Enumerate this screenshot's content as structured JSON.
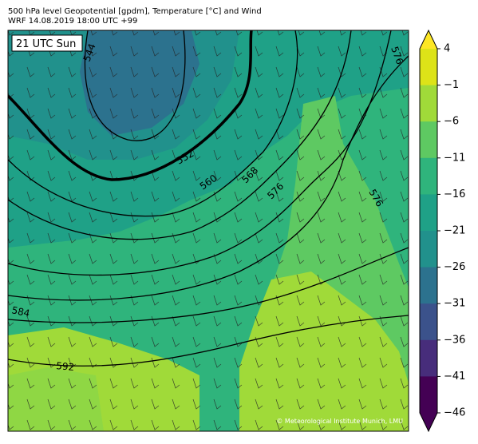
{
  "header": {
    "line1": "500 hPa level Geopotential [gpdm], Temperature [°C] and Wind",
    "line2": "WRF 14.08.2019 18:00 UTC +99"
  },
  "map": {
    "time_label": "21 UTC Sun",
    "contour_labels": [
      "544",
      "552",
      "560",
      "568",
      "576",
      "576",
      "576",
      "584",
      "592"
    ],
    "credit": "© Meteorological Institute Munich, LMU"
  },
  "colorbar": {
    "ticks": [
      "4",
      "−1",
      "−6",
      "−11",
      "−16",
      "−21",
      "−26",
      "−31",
      "−36",
      "−41",
      "−46"
    ]
  }
}
